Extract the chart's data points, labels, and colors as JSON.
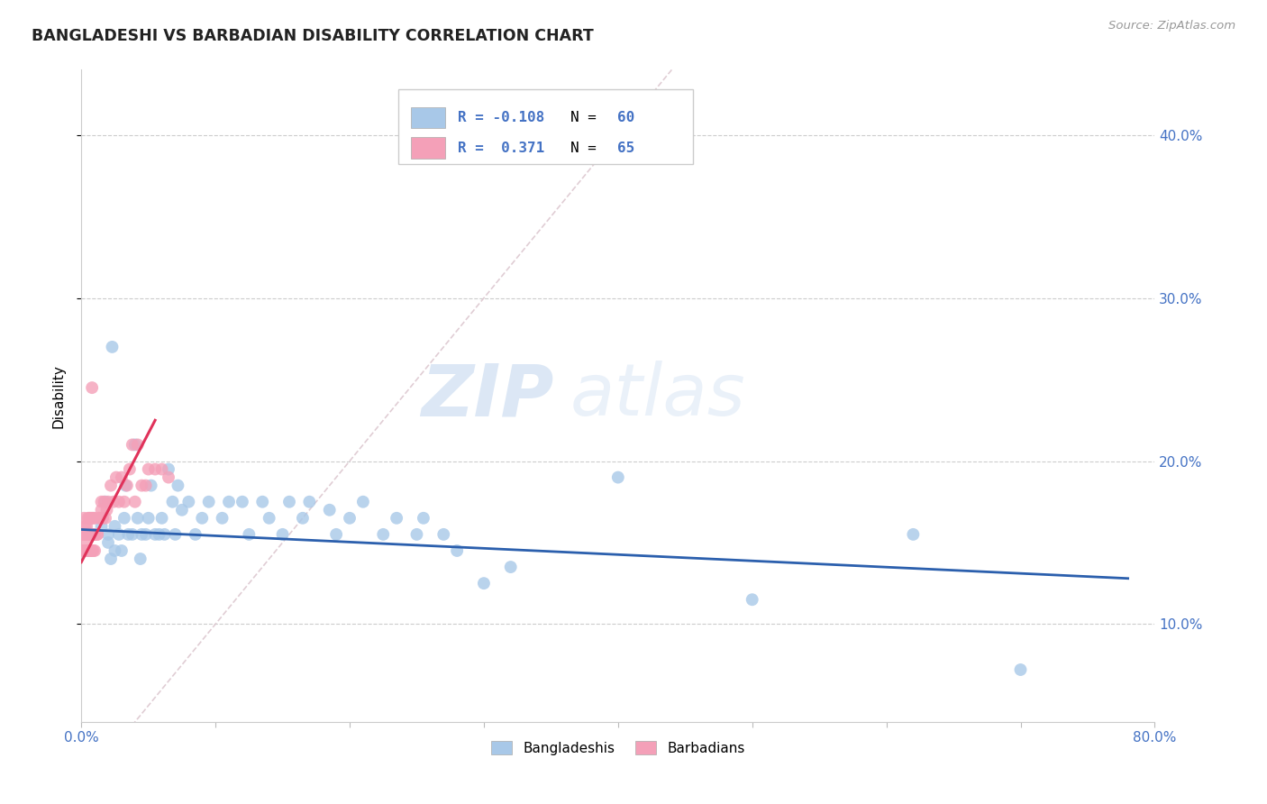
{
  "title": "BANGLADESHI VS BARBADIAN DISABILITY CORRELATION CHART",
  "source": "Source: ZipAtlas.com",
  "ylabel": "Disability",
  "ytick_labels": [
    "10.0%",
    "20.0%",
    "30.0%",
    "40.0%"
  ],
  "ytick_values": [
    0.1,
    0.2,
    0.3,
    0.4
  ],
  "xlim": [
    0.0,
    0.8
  ],
  "ylim": [
    0.04,
    0.44
  ],
  "blue_R": -0.108,
  "blue_N": 60,
  "pink_R": 0.371,
  "pink_N": 65,
  "blue_color": "#a8c8e8",
  "pink_color": "#f4a0b8",
  "blue_line_color": "#2b5fad",
  "pink_line_color": "#e0325a",
  "diagonal_color": "#ddc8d0",
  "legend_label_blue": "Bangladeshis",
  "legend_label_pink": "Barbadians",
  "watermark_zip": "ZIP",
  "watermark_atlas": "atlas",
  "blue_line_x": [
    0.0,
    0.78
  ],
  "blue_line_y": [
    0.158,
    0.128
  ],
  "pink_line_x": [
    0.0,
    0.055
  ],
  "pink_line_y": [
    0.138,
    0.225
  ],
  "blue_x": [
    0.02,
    0.025,
    0.022,
    0.018,
    0.023,
    0.028,
    0.015,
    0.02,
    0.025,
    0.035,
    0.032,
    0.038,
    0.03,
    0.033,
    0.045,
    0.042,
    0.048,
    0.044,
    0.04,
    0.055,
    0.052,
    0.058,
    0.05,
    0.065,
    0.062,
    0.068,
    0.06,
    0.075,
    0.072,
    0.07,
    0.085,
    0.08,
    0.095,
    0.09,
    0.105,
    0.11,
    0.12,
    0.125,
    0.135,
    0.14,
    0.15,
    0.155,
    0.165,
    0.17,
    0.185,
    0.19,
    0.2,
    0.21,
    0.225,
    0.235,
    0.25,
    0.255,
    0.27,
    0.28,
    0.3,
    0.32,
    0.4,
    0.5,
    0.62,
    0.7
  ],
  "blue_y": [
    0.155,
    0.16,
    0.14,
    0.175,
    0.27,
    0.155,
    0.16,
    0.15,
    0.145,
    0.155,
    0.165,
    0.155,
    0.145,
    0.185,
    0.155,
    0.165,
    0.155,
    0.14,
    0.21,
    0.155,
    0.185,
    0.155,
    0.165,
    0.195,
    0.155,
    0.175,
    0.165,
    0.17,
    0.185,
    0.155,
    0.155,
    0.175,
    0.175,
    0.165,
    0.165,
    0.175,
    0.175,
    0.155,
    0.175,
    0.165,
    0.155,
    0.175,
    0.165,
    0.175,
    0.17,
    0.155,
    0.165,
    0.175,
    0.155,
    0.165,
    0.155,
    0.165,
    0.155,
    0.145,
    0.125,
    0.135,
    0.19,
    0.115,
    0.155,
    0.072
  ],
  "pink_x": [
    0.001,
    0.001,
    0.0015,
    0.002,
    0.002,
    0.002,
    0.0025,
    0.003,
    0.003,
    0.003,
    0.0035,
    0.004,
    0.004,
    0.004,
    0.0045,
    0.005,
    0.005,
    0.005,
    0.0055,
    0.006,
    0.006,
    0.006,
    0.0065,
    0.007,
    0.007,
    0.007,
    0.008,
    0.008,
    0.008,
    0.009,
    0.009,
    0.009,
    0.01,
    0.01,
    0.01,
    0.01,
    0.012,
    0.012,
    0.013,
    0.014,
    0.015,
    0.015,
    0.016,
    0.017,
    0.018,
    0.019,
    0.02,
    0.022,
    0.024,
    0.026,
    0.028,
    0.03,
    0.032,
    0.034,
    0.036,
    0.038,
    0.04,
    0.042,
    0.045,
    0.048,
    0.05,
    0.055,
    0.06,
    0.065,
    0.008
  ],
  "pink_y": [
    0.155,
    0.145,
    0.155,
    0.155,
    0.145,
    0.165,
    0.155,
    0.16,
    0.15,
    0.155,
    0.155,
    0.155,
    0.16,
    0.145,
    0.155,
    0.155,
    0.145,
    0.165,
    0.155,
    0.155,
    0.145,
    0.165,
    0.155,
    0.155,
    0.145,
    0.165,
    0.155,
    0.145,
    0.165,
    0.155,
    0.145,
    0.165,
    0.155,
    0.145,
    0.155,
    0.165,
    0.155,
    0.155,
    0.165,
    0.165,
    0.17,
    0.175,
    0.165,
    0.175,
    0.165,
    0.17,
    0.175,
    0.185,
    0.175,
    0.19,
    0.175,
    0.19,
    0.175,
    0.185,
    0.195,
    0.21,
    0.175,
    0.21,
    0.185,
    0.185,
    0.195,
    0.195,
    0.195,
    0.19,
    0.245
  ]
}
